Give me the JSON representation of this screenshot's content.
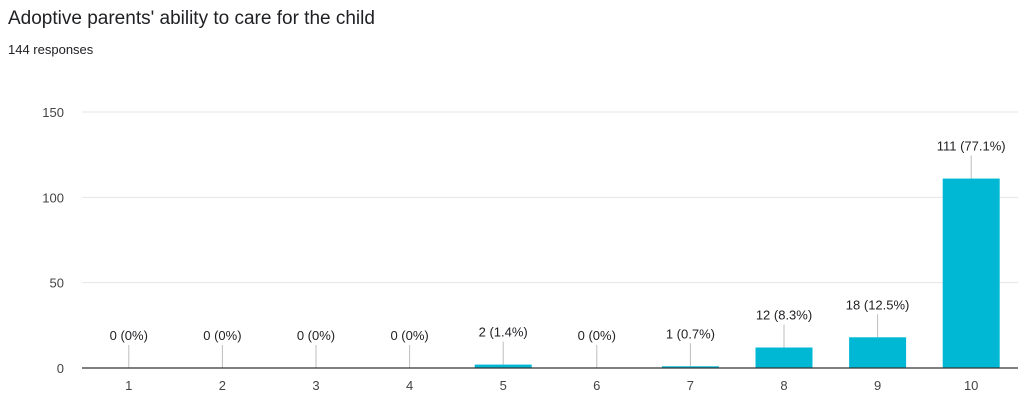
{
  "header": {
    "title": "Adoptive parents' ability to care for the child",
    "subtitle": "144 responses"
  },
  "colors": {
    "bar": "#00b8d4",
    "grid": "#e6e6e6",
    "axis": "#333333",
    "leader": "#bdbdbd"
  },
  "chart_data": {
    "type": "bar",
    "title": "Adoptive parents' ability to care for the child",
    "categories": [
      "1",
      "2",
      "3",
      "4",
      "5",
      "6",
      "7",
      "8",
      "9",
      "10"
    ],
    "values": [
      0,
      0,
      0,
      0,
      2,
      0,
      1,
      12,
      18,
      111
    ],
    "data_labels": [
      "0 (0%)",
      "0 (0%)",
      "0 (0%)",
      "0 (0%)",
      "2 (1.4%)",
      "0 (0%)",
      "1 (0.7%)",
      "12 (8.3%)",
      "18 (12.5%)",
      "111 (77.1%)"
    ],
    "yticks": [
      0,
      50,
      100,
      150
    ],
    "ylim": [
      0,
      150
    ],
    "xlabel": "",
    "ylabel": "",
    "grid": true,
    "legend": "none"
  }
}
